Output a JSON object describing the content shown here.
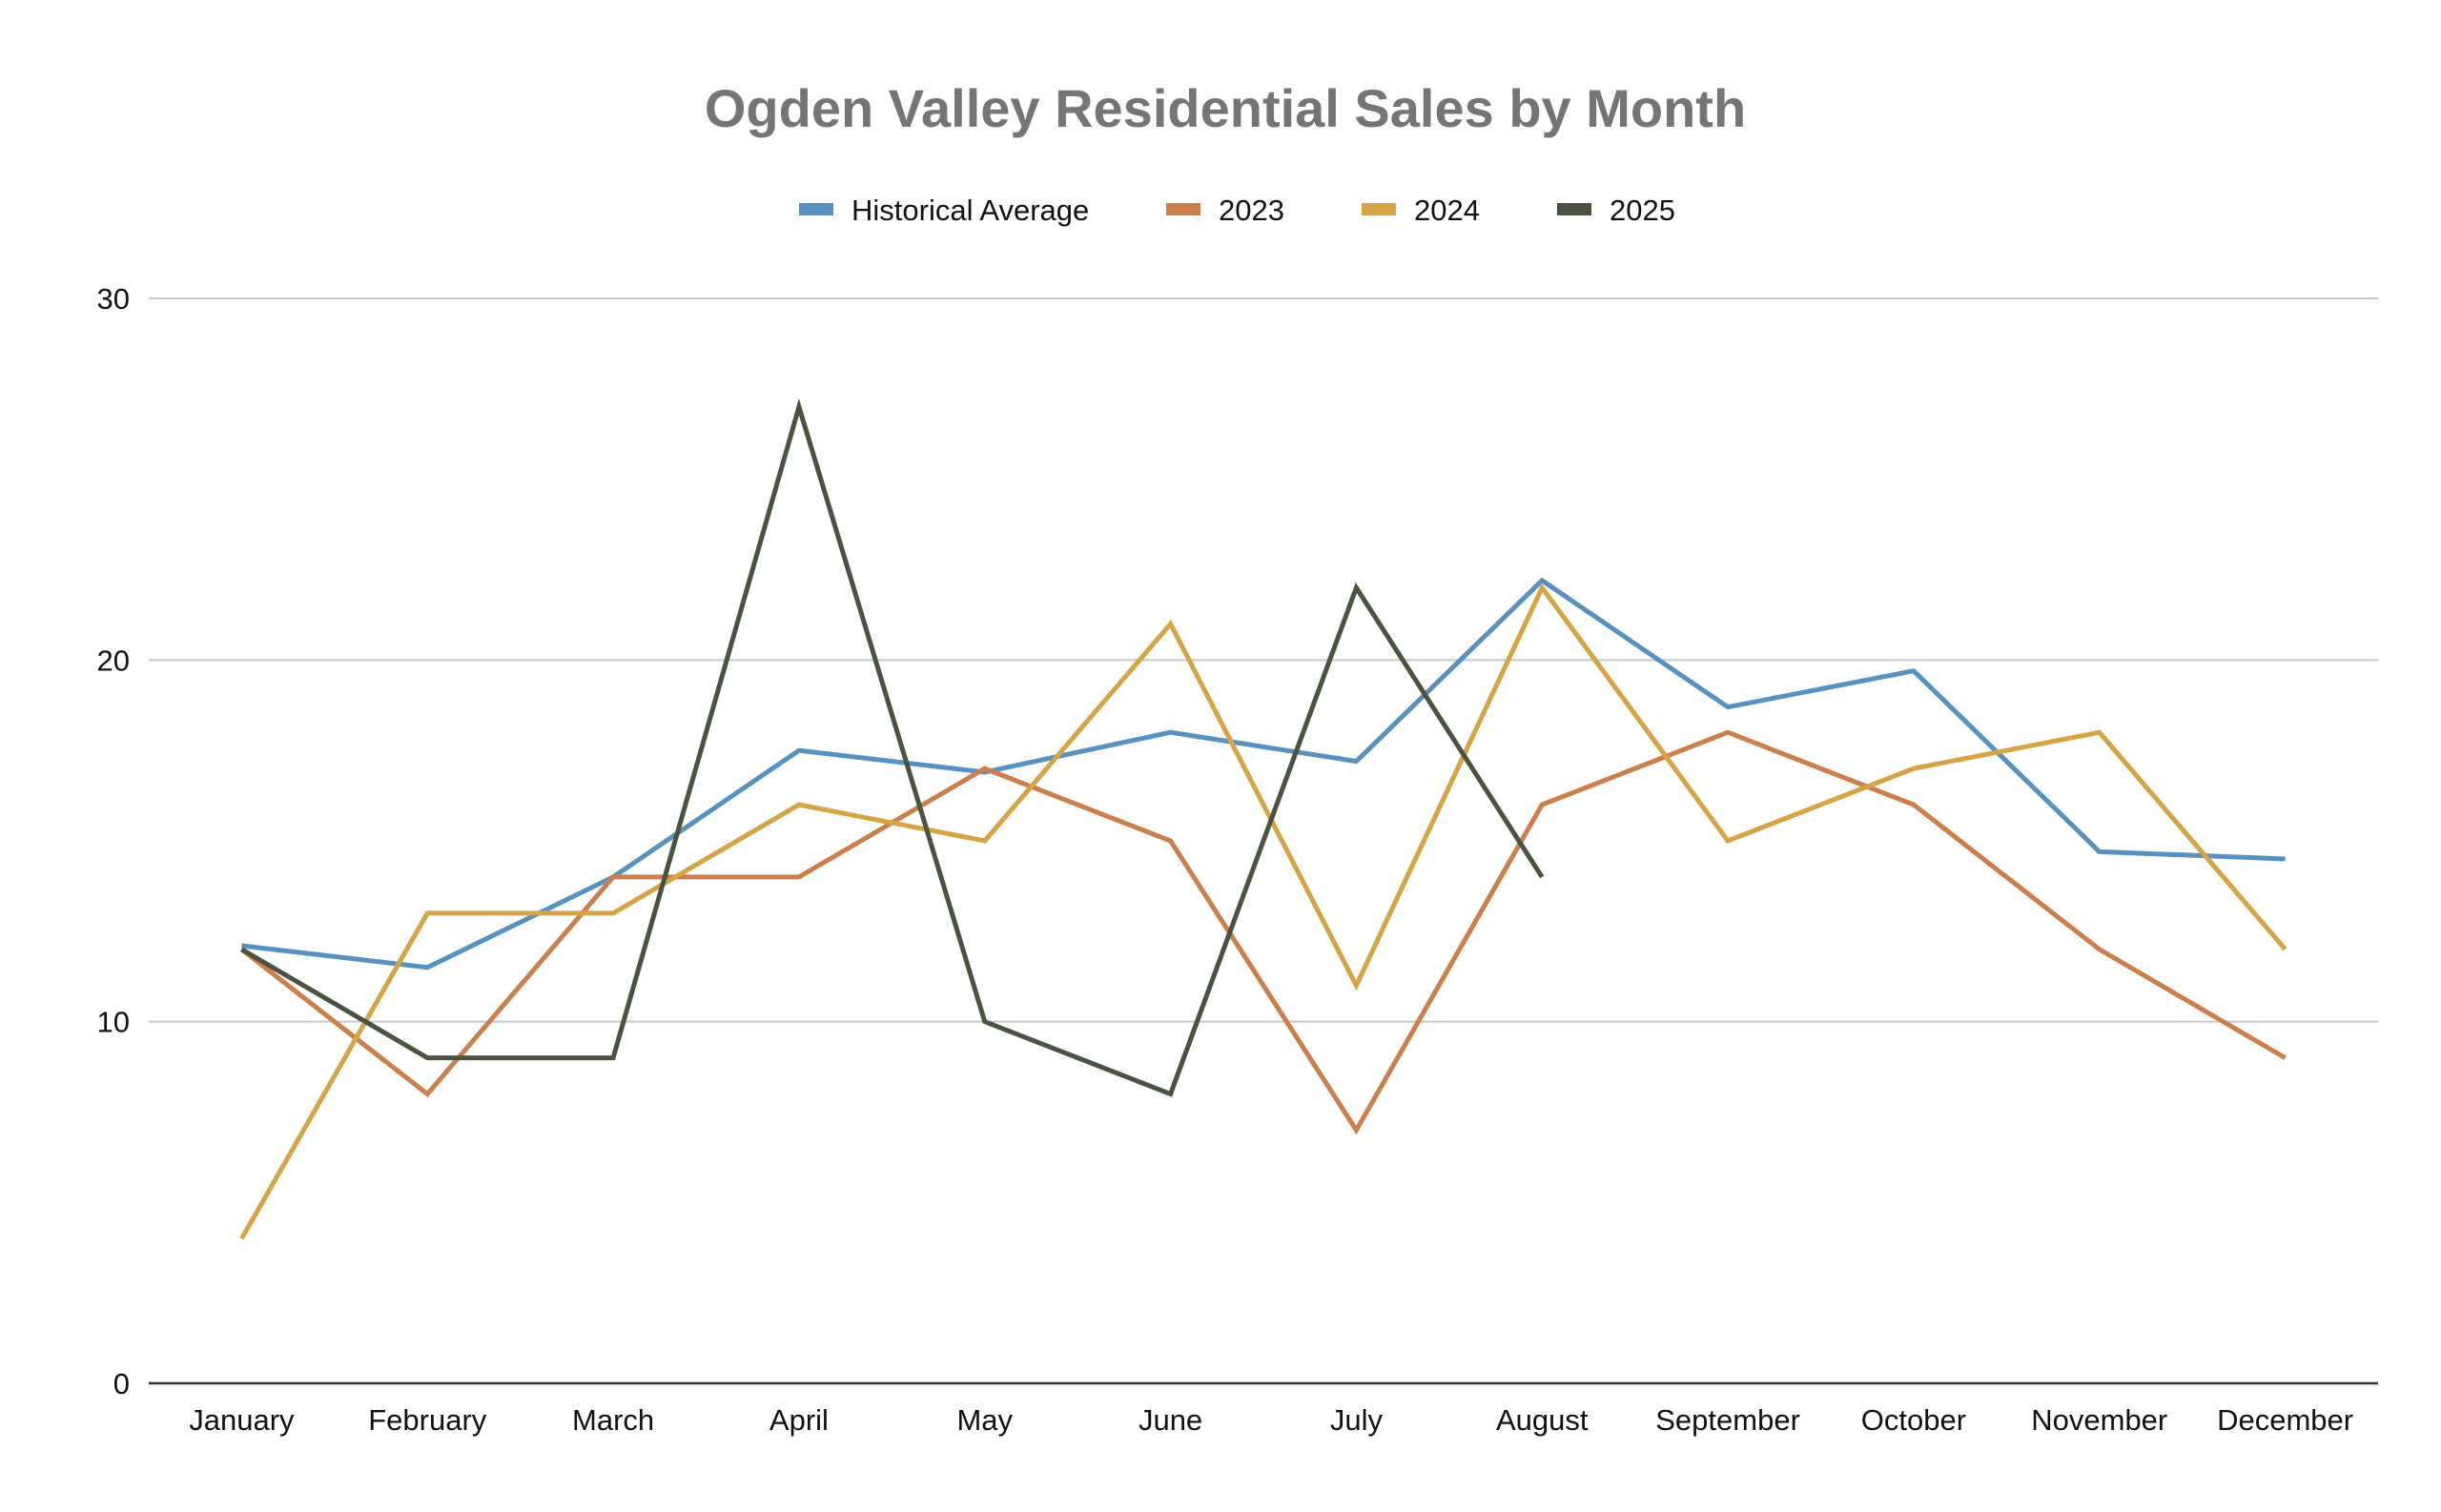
{
  "chart_data": {
    "type": "line",
    "title": "Ogden Valley Residential Sales by Month",
    "xlabel": "",
    "ylabel": "",
    "ylim": [
      0,
      30
    ],
    "yticks": [
      0,
      10,
      20,
      30
    ],
    "grid": true,
    "legend_position": "top",
    "categories": [
      "January",
      "February",
      "March",
      "April",
      "May",
      "June",
      "July",
      "August",
      "September",
      "October",
      "November",
      "December"
    ],
    "series": [
      {
        "name": "Historical Average",
        "color": "#5691c0",
        "values": [
          12.1,
          11.5,
          14.0,
          17.5,
          16.9,
          18.0,
          17.2,
          22.2,
          18.7,
          19.7,
          14.7,
          14.5
        ]
      },
      {
        "name": "2023",
        "color": "#cc7f4b",
        "values": [
          12,
          8,
          14,
          14,
          17,
          15,
          7,
          16,
          18,
          16,
          12,
          9
        ]
      },
      {
        "name": "2024",
        "color": "#d6a444",
        "values": [
          4,
          13,
          13,
          16,
          15,
          21,
          11,
          22,
          15,
          17,
          18,
          12
        ]
      },
      {
        "name": "2025",
        "color": "#4a5240",
        "values": [
          12,
          9,
          9,
          27,
          10,
          8,
          22,
          14,
          null,
          null,
          null,
          null
        ]
      }
    ]
  }
}
